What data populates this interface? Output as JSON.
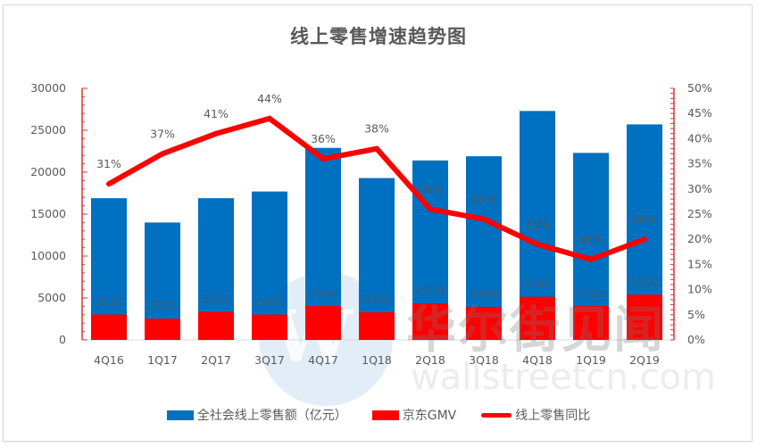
{
  "chart_data": {
    "type": "bar",
    "title": "线上零售增速趋势图",
    "categories": [
      "4Q16",
      "1Q17",
      "2Q17",
      "3Q17",
      "4Q17",
      "1Q18",
      "2Q18",
      "3Q18",
      "4Q18",
      "1Q19",
      "2Q19"
    ],
    "series": [
      {
        "name": "全社会线上零售额（亿元）",
        "type": "bar",
        "axis": "left",
        "color": "#0070c0",
        "values": [
          16900,
          14000,
          16900,
          17700,
          22900,
          19300,
          21400,
          21900,
          27300,
          22300,
          25700
        ]
      },
      {
        "name": "京东GMV",
        "type": "bar",
        "axis": "left",
        "color": "#ff0000",
        "values": [
          3030,
          2532,
          3353,
          3025,
          4034,
          3302,
          4374,
          3948,
          5144,
          4028,
          5402
        ],
        "labels": [
          "3030",
          "2532",
          "3353",
          "3025",
          "4034",
          "3302",
          "4374",
          "3948",
          "5144",
          "4028",
          "5402"
        ]
      },
      {
        "name": "线上零售同比",
        "type": "line",
        "axis": "right",
        "color": "#ff0000",
        "values": [
          31,
          37,
          41,
          44,
          36,
          38,
          26,
          24,
          19,
          16,
          20
        ],
        "labels": [
          "31%",
          "37%",
          "41%",
          "44%",
          "36%",
          "38%",
          "26%",
          "24%",
          "19%",
          "16%",
          "20%"
        ]
      }
    ],
    "y_left": {
      "range": [
        0,
        30000
      ],
      "ticks": [
        "0",
        "5000",
        "10000",
        "15000",
        "20000",
        "25000",
        "30000"
      ]
    },
    "y_right": {
      "range": [
        0,
        50
      ],
      "ticks": [
        "0%",
        "5%",
        "10%",
        "15%",
        "20%",
        "25%",
        "30%",
        "35%",
        "40%",
        "45%",
        "50%"
      ]
    },
    "xlabel": "",
    "ylabel": "",
    "grid": false,
    "legend_position": "bottom"
  },
  "watermark": {
    "cn": "华尔街见闻",
    "en": "wallstreetcn.com",
    "logo": "W"
  }
}
